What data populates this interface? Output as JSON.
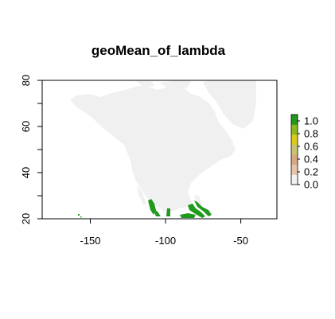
{
  "chart_data": {
    "type": "heatmap",
    "title": "geoMean_of_lambda",
    "xlim": [
      -182,
      -26
    ],
    "ylim": [
      20,
      80
    ],
    "x_ticks": [
      -150,
      -100,
      -50
    ],
    "x_tick_labels": [
      "-150",
      "-100",
      "-50"
    ],
    "y_ticks": [
      20,
      40,
      60,
      80
    ],
    "y_tick_labels": [
      "20",
      "40",
      "60",
      "80"
    ],
    "y_minor_ticks": [
      30,
      50,
      70
    ],
    "grid": false,
    "land_color": "#f0f0f0",
    "legend": {
      "position": "right",
      "range": [
        0,
        1.1
      ],
      "ticks": [
        0,
        0.2,
        0.4,
        0.6,
        0.8,
        1.0
      ],
      "tick_labels": [
        "0.0",
        "0.2",
        "0.4",
        "0.6",
        "0.8",
        "1.0"
      ],
      "colors": [
        "#f2f2f2",
        "#e8c4a8",
        "#d9a882",
        "#c9c472",
        "#dccb1a",
        "#8fb81f",
        "#27961c"
      ]
    },
    "high_value_color": "#1f9a1c"
  }
}
